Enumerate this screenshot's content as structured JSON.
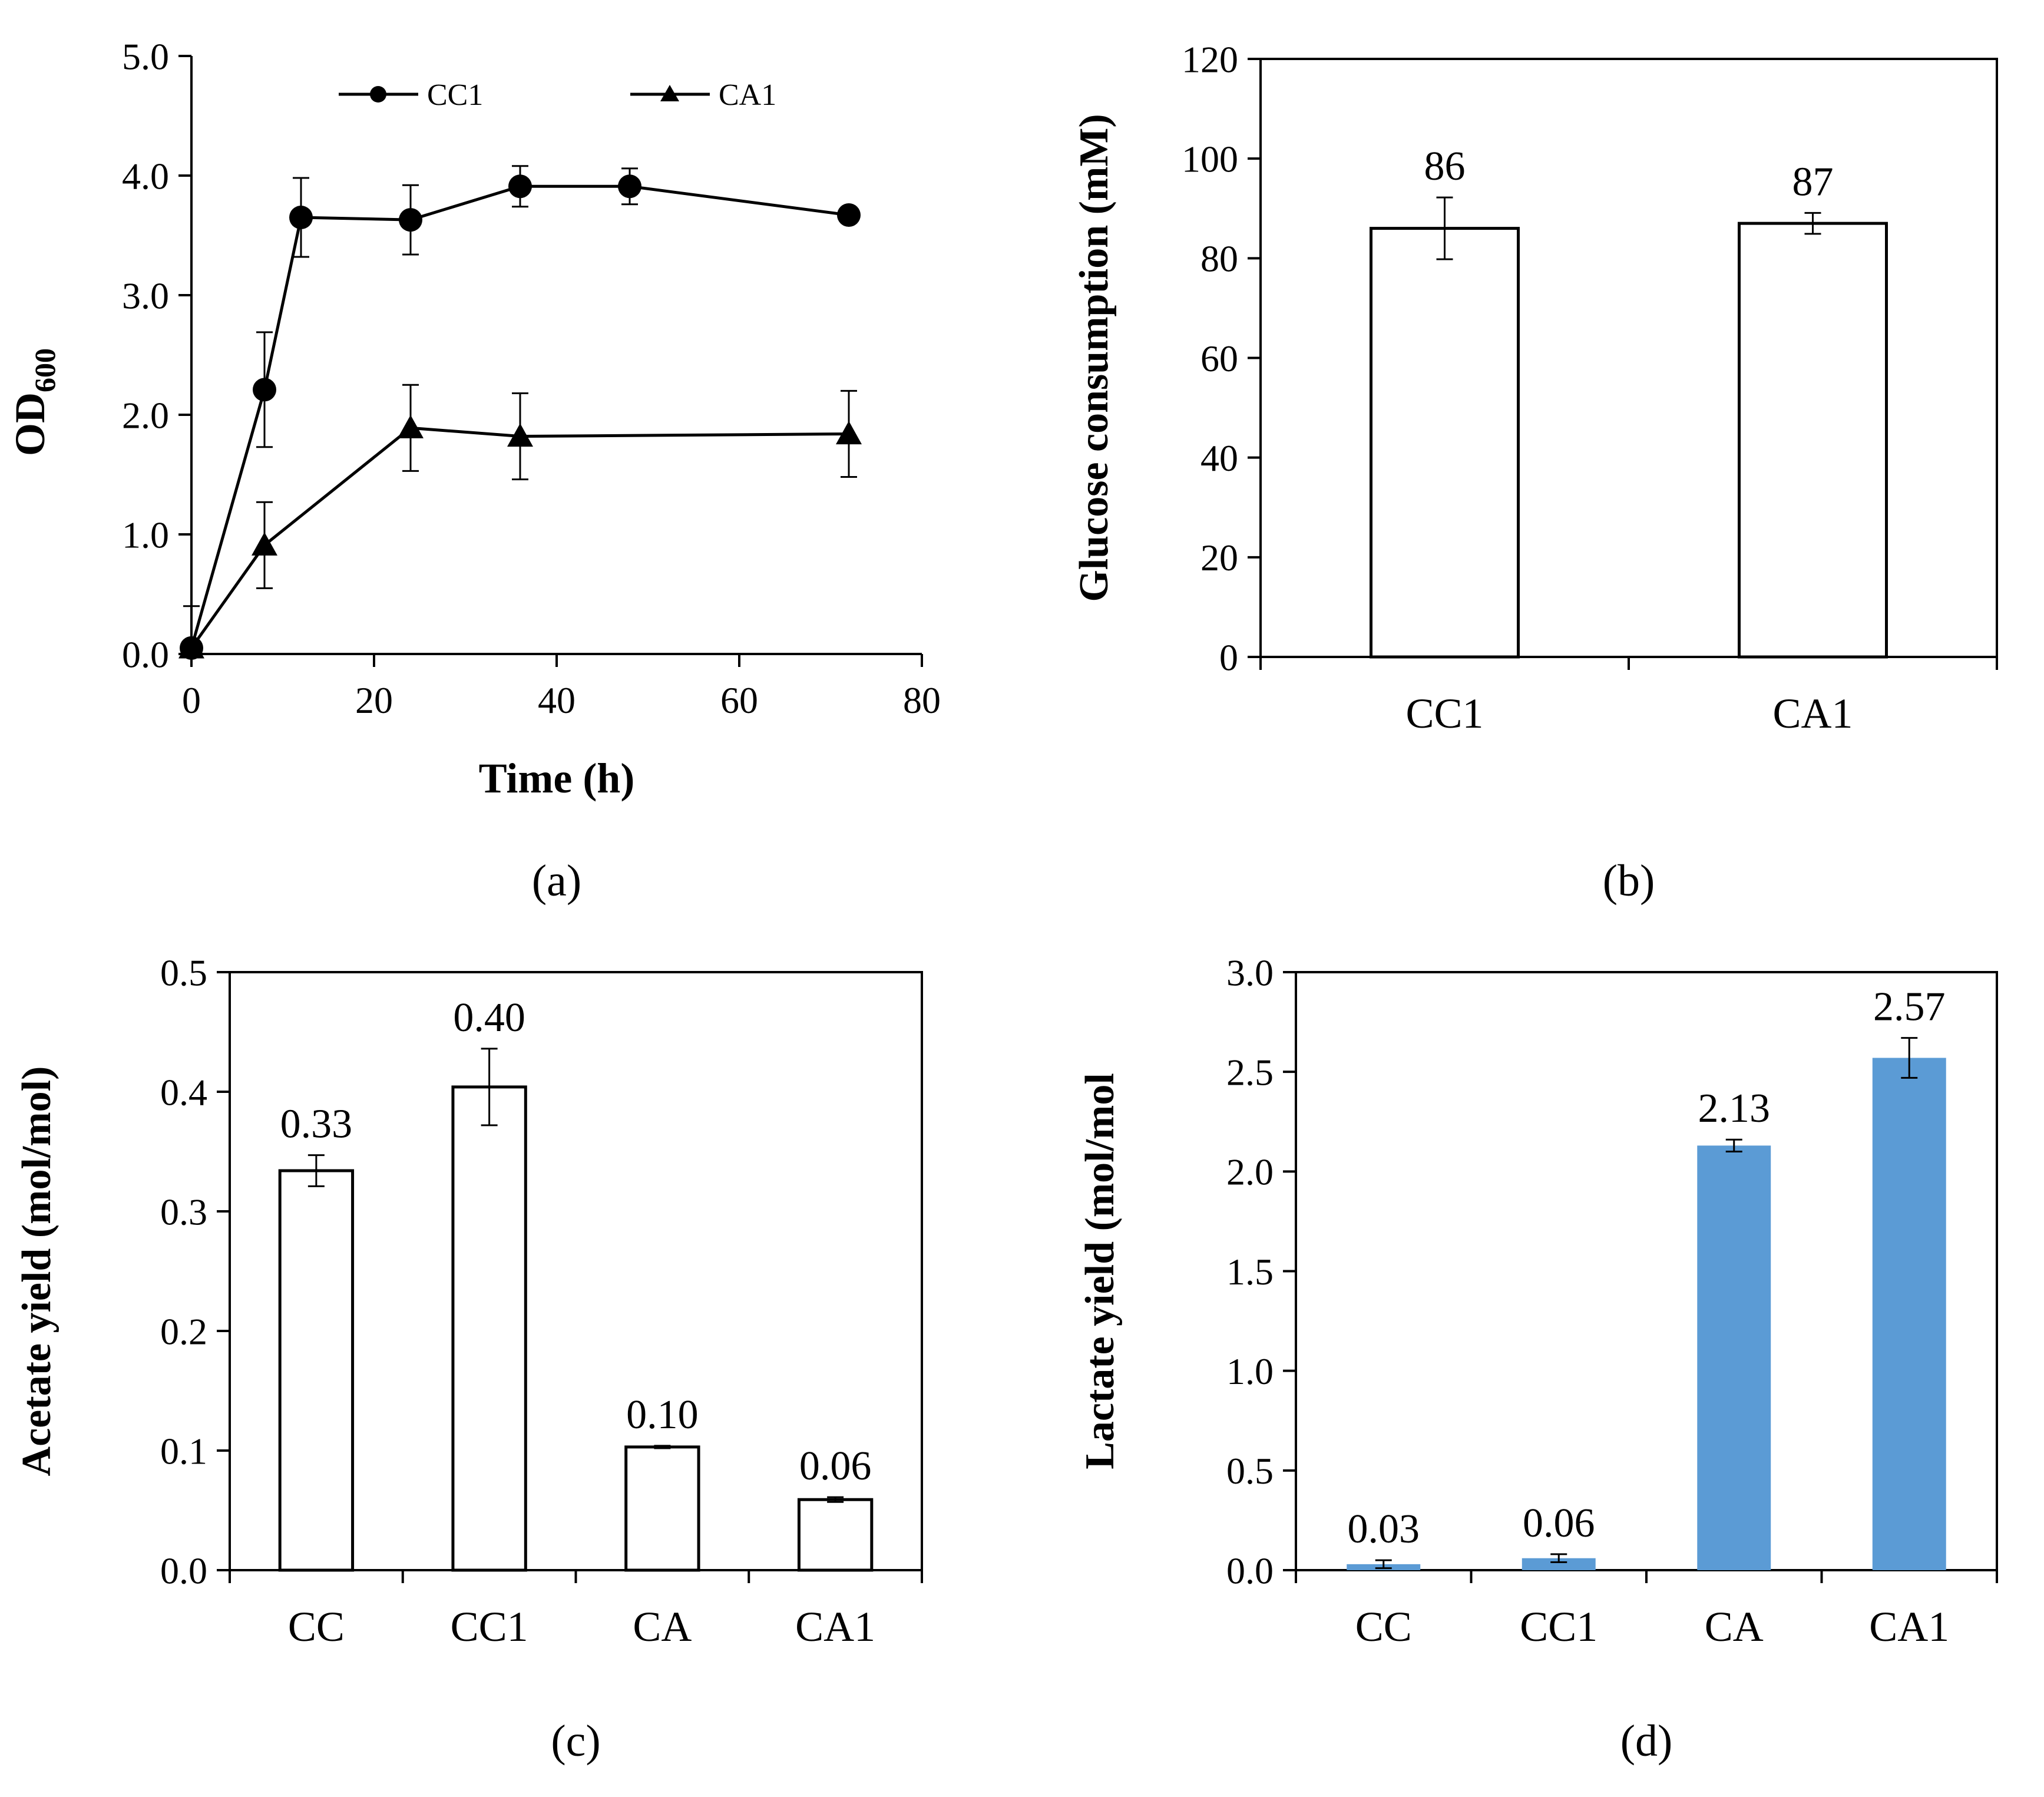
{
  "colors": {
    "line": "#000000",
    "bar_fill_white": "#ffffff",
    "bar_fill_blue": "#5b9bd5",
    "background": "#ffffff"
  },
  "chart_data": [
    {
      "id": "a",
      "type": "line",
      "panel_label": "(a)",
      "xlabel": "Time (h)",
      "ylabel": "OD",
      "ylabel_sub": "600",
      "xlim": [
        0,
        80
      ],
      "ylim": [
        0,
        5
      ],
      "x_ticks": [
        "0",
        "20",
        "40",
        "60",
        "80"
      ],
      "y_ticks": [
        "0.0",
        "1.0",
        "2.0",
        "3.0",
        "4.0",
        "5.0"
      ],
      "legend_placement": "top",
      "series": [
        {
          "name": "CC1",
          "marker": "circle",
          "x": [
            0,
            8,
            12,
            24,
            36,
            48,
            72
          ],
          "y": [
            0.05,
            2.21,
            3.65,
            3.63,
            3.91,
            3.91,
            3.67
          ],
          "err": [
            0.35,
            0.48,
            0.33,
            0.29,
            0.17,
            0.15,
            0.0
          ]
        },
        {
          "name": "CA1",
          "marker": "triangle",
          "x": [
            0,
            8,
            24,
            36,
            72
          ],
          "y": [
            0.05,
            0.91,
            1.89,
            1.82,
            1.84
          ],
          "err": [
            0.0,
            0.36,
            0.36,
            0.36,
            0.36
          ]
        }
      ]
    },
    {
      "id": "b",
      "type": "bar",
      "panel_label": "(b)",
      "xlabel": "",
      "ylabel": "Glucose consumption  (mM)",
      "ylim": [
        0,
        120
      ],
      "y_ticks": [
        "0",
        "20",
        "40",
        "60",
        "80",
        "100",
        "120"
      ],
      "categories": [
        "CC1",
        "CA1"
      ],
      "values": [
        86,
        87
      ],
      "errors": [
        6.2,
        2.1
      ],
      "data_labels": [
        "86",
        "87"
      ],
      "bar_color": "#ffffff"
    },
    {
      "id": "c",
      "type": "bar",
      "panel_label": "(c)",
      "xlabel": "",
      "ylabel": "Acetate yield (mol/mol)",
      "ylim": [
        0,
        0.5
      ],
      "y_ticks": [
        "0.0",
        "0.1",
        "0.2",
        "0.3",
        "0.4",
        "0.5"
      ],
      "categories": [
        "CC",
        "CC1",
        "CA",
        "CA1"
      ],
      "values": [
        0.334,
        0.404,
        0.103,
        0.059
      ],
      "errors": [
        0.013,
        0.032,
        0.001,
        0.002
      ],
      "data_labels": [
        "0.33",
        "0.40",
        "0.10",
        "0.06"
      ],
      "bar_color": "#ffffff"
    },
    {
      "id": "d",
      "type": "bar",
      "panel_label": "(d)",
      "xlabel": "",
      "ylabel": "Lactate yield (mol/mol",
      "ylim": [
        0,
        3.0
      ],
      "y_ticks": [
        "0.0",
        "0.5",
        "1.0",
        "1.5",
        "2.0",
        "2.5",
        "3.0"
      ],
      "categories": [
        "CC",
        "CC1",
        "CA",
        "CA1"
      ],
      "values": [
        0.03,
        0.06,
        2.13,
        2.57
      ],
      "errors": [
        0.02,
        0.02,
        0.03,
        0.1
      ],
      "data_labels": [
        "0.03",
        "0.06",
        "2.13",
        "2.57"
      ],
      "bar_color": "#5b9bd5"
    }
  ]
}
